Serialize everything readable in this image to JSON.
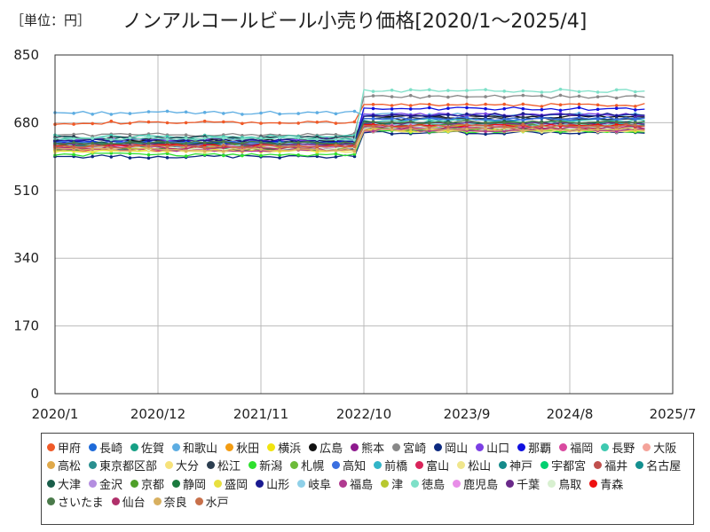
{
  "unit_label": "［単位：円］",
  "chart_data": {
    "type": "line",
    "title": "ノンアルコールビール小売り価格[2020/1～2025/4]",
    "xlabel": "",
    "ylabel": "",
    "ylim": [
      0,
      850
    ],
    "xlim": [
      "2020-01",
      "2025-07"
    ],
    "y_ticks": [
      {
        "value": 0,
        "label": "0"
      },
      {
        "value": 170,
        "label": "170"
      },
      {
        "value": 340,
        "label": "340"
      },
      {
        "value": 510,
        "label": "510"
      },
      {
        "value": 680,
        "label": "680"
      },
      {
        "value": 850,
        "label": "850"
      }
    ],
    "x_ticks": [
      {
        "value": "2020-01",
        "label": "2020/1"
      },
      {
        "value": "2020-12",
        "label": "2020/12"
      },
      {
        "value": "2021-11",
        "label": "2021/11"
      },
      {
        "value": "2022-10",
        "label": "2022/10"
      },
      {
        "value": "2023-09",
        "label": "2023/9"
      },
      {
        "value": "2024-08",
        "label": "2024/8"
      },
      {
        "value": "2025-07",
        "label": "2025/7"
      }
    ],
    "grid": true,
    "legend_position": "bottom",
    "series": [
      {
        "name": "甲府",
        "color": "#f05a28",
        "values_2020_01_to_2022_09": 680,
        "values_2022_10_to_2025_04": 725
      },
      {
        "name": "長崎",
        "color": "#1e6ad9",
        "values_2020_01_to_2022_09": 632,
        "values_2022_10_to_2025_04": 690
      },
      {
        "name": "佐賀",
        "color": "#16a085",
        "values_2020_01_to_2022_09": 640,
        "values_2022_10_to_2025_04": 680
      },
      {
        "name": "和歌山",
        "color": "#5dade2",
        "values_2020_01_to_2022_09": 705,
        "values_2022_10_to_2025_04": 700
      },
      {
        "name": "秋田",
        "color": "#f39c12",
        "values_2020_01_to_2022_09": 620,
        "values_2022_10_to_2025_04": 670
      },
      {
        "name": "横浜",
        "color": "#f1e40f",
        "values_2020_01_to_2022_09": 615,
        "values_2022_10_to_2025_04": 665
      },
      {
        "name": "広島",
        "color": "#111111",
        "values_2020_01_to_2022_09": 635,
        "values_2022_10_to_2025_04": 695
      },
      {
        "name": "熊本",
        "color": "#8e1a8e",
        "values_2020_01_to_2022_09": 625,
        "values_2022_10_to_2025_04": 675
      },
      {
        "name": "宮崎",
        "color": "#888888",
        "values_2020_01_to_2022_09": 650,
        "values_2022_10_to_2025_04": 745
      },
      {
        "name": "岡山",
        "color": "#0c2a80",
        "values_2020_01_to_2022_09": 595,
        "values_2022_10_to_2025_04": 655
      },
      {
        "name": "山口",
        "color": "#7b3fe4",
        "values_2020_01_to_2022_09": 638,
        "values_2022_10_to_2025_04": 700
      },
      {
        "name": "那覇",
        "color": "#1010e0",
        "values_2020_01_to_2022_09": 630,
        "values_2022_10_to_2025_04": 715
      },
      {
        "name": "福岡",
        "color": "#d94aa0",
        "values_2020_01_to_2022_09": 612,
        "values_2022_10_to_2025_04": 668
      },
      {
        "name": "長野",
        "color": "#3ec9b0",
        "values_2020_01_to_2022_09": 645,
        "values_2022_10_to_2025_04": 685
      },
      {
        "name": "大阪",
        "color": "#f4a39a",
        "values_2020_01_to_2022_09": 618,
        "values_2022_10_to_2025_04": 662
      },
      {
        "name": "高松",
        "color": "#e0a94a",
        "values_2020_01_to_2022_09": 622,
        "values_2022_10_to_2025_04": 672
      },
      {
        "name": "東京都区部",
        "color": "#2a8f8f",
        "values_2020_01_to_2022_09": 628,
        "values_2022_10_to_2025_04": 678
      },
      {
        "name": "大分",
        "color": "#f7e27a",
        "values_2020_01_to_2022_09": 610,
        "values_2022_10_to_2025_04": 660
      },
      {
        "name": "松江",
        "color": "#2c3e50",
        "values_2020_01_to_2022_09": 642,
        "values_2022_10_to_2025_04": 690
      },
      {
        "name": "新潟",
        "color": "#2ee02e",
        "values_2020_01_to_2022_09": 600,
        "values_2022_10_to_2025_04": 658
      },
      {
        "name": "札幌",
        "color": "#6dbb3a",
        "values_2020_01_to_2022_09": 615,
        "values_2022_10_to_2025_04": 668
      },
      {
        "name": "高知",
        "color": "#3a6fe0",
        "values_2020_01_to_2022_09": 630,
        "values_2022_10_to_2025_04": 690
      },
      {
        "name": "前橋",
        "color": "#33b5c8",
        "values_2020_01_to_2022_09": 622,
        "values_2022_10_to_2025_04": 674
      },
      {
        "name": "富山",
        "color": "#d9245a",
        "values_2020_01_to_2022_09": 612,
        "values_2022_10_to_2025_04": 665
      },
      {
        "name": "松山",
        "color": "#f0e68c",
        "values_2020_01_to_2022_09": 608,
        "values_2022_10_to_2025_04": 660
      },
      {
        "name": "神戸",
        "color": "#148a8a",
        "values_2020_01_to_2022_09": 626,
        "values_2022_10_to_2025_04": 676
      },
      {
        "name": "宇都宮",
        "color": "#00d070",
        "values_2020_01_to_2022_09": 618,
        "values_2022_10_to_2025_04": 668
      },
      {
        "name": "福井",
        "color": "#c0504d",
        "values_2020_01_to_2022_09": 624,
        "values_2022_10_to_2025_04": 674
      },
      {
        "name": "名古屋",
        "color": "#149090",
        "values_2020_01_to_2022_09": 620,
        "values_2022_10_to_2025_04": 672
      },
      {
        "name": "大津",
        "color": "#1a5e4a",
        "values_2020_01_to_2022_09": 628,
        "values_2022_10_to_2025_04": 680
      },
      {
        "name": "金沢",
        "color": "#b48ee0",
        "values_2020_01_to_2022_09": 616,
        "values_2022_10_to_2025_04": 666
      },
      {
        "name": "京都",
        "color": "#4fa02a",
        "values_2020_01_to_2022_09": 622,
        "values_2022_10_to_2025_04": 674
      },
      {
        "name": "静岡",
        "color": "#1b7a3e",
        "values_2020_01_to_2022_09": 614,
        "values_2022_10_to_2025_04": 664
      },
      {
        "name": "盛岡",
        "color": "#e8e040",
        "values_2020_01_to_2022_09": 610,
        "values_2022_10_to_2025_04": 660
      },
      {
        "name": "山形",
        "color": "#1a1a90",
        "values_2020_01_to_2022_09": 636,
        "values_2022_10_to_2025_04": 700
      },
      {
        "name": "岐阜",
        "color": "#8fd0e8",
        "values_2020_01_to_2022_09": 624,
        "values_2022_10_to_2025_04": 676
      },
      {
        "name": "福島",
        "color": "#b03a90",
        "values_2020_01_to_2022_09": 612,
        "values_2022_10_to_2025_04": 662
      },
      {
        "name": "津",
        "color": "#b8c830",
        "values_2020_01_to_2022_09": 618,
        "values_2022_10_to_2025_04": 670
      },
      {
        "name": "徳島",
        "color": "#7ee0c8",
        "values_2020_01_to_2022_09": 640,
        "values_2022_10_to_2025_04": 760
      },
      {
        "name": "鹿児島",
        "color": "#e88ee8",
        "values_2020_01_to_2022_09": 620,
        "values_2022_10_to_2025_04": 670
      },
      {
        "name": "千葉",
        "color": "#6a2a8a",
        "values_2020_01_to_2022_09": 626,
        "values_2022_10_to_2025_04": 678
      },
      {
        "name": "鳥取",
        "color": "#d8f0d0",
        "values_2020_01_to_2022_09": 616,
        "values_2022_10_to_2025_04": 668
      },
      {
        "name": "青森",
        "color": "#ee1010",
        "values_2020_01_to_2022_09": 622,
        "values_2022_10_to_2025_04": 672
      },
      {
        "name": "さいたま",
        "color": "#4a7a4a",
        "values_2020_01_to_2022_09": 630,
        "values_2022_10_to_2025_04": 682
      },
      {
        "name": "仙台",
        "color": "#b0306a",
        "values_2020_01_to_2022_09": 618,
        "values_2022_10_to_2025_04": 668
      },
      {
        "name": "奈良",
        "color": "#d8b060",
        "values_2020_01_to_2022_09": 612,
        "values_2022_10_to_2025_04": 664
      },
      {
        "name": "水戸",
        "color": "#c8704a",
        "values_2020_01_to_2022_09": 620,
        "values_2022_10_to_2025_04": 672
      }
    ]
  }
}
